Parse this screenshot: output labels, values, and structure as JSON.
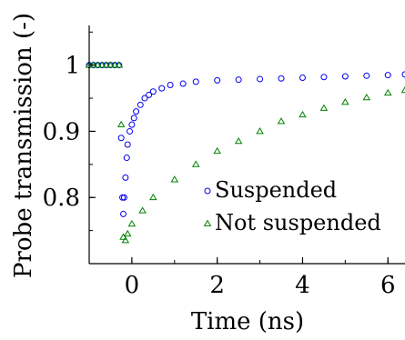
{
  "chart_data": {
    "type": "scatter",
    "title": "",
    "xlabel": "Time (ns)",
    "ylabel": "Probe transmission (-)",
    "xlim": [
      -1.0,
      6.4
    ],
    "ylim": [
      0.7,
      1.06
    ],
    "xticks": [
      0,
      2,
      4,
      6
    ],
    "yticks": [
      0.8,
      0.9,
      1
    ],
    "xtick_labels": [
      "0",
      "2",
      "4",
      "6"
    ],
    "ytick_labels": [
      "0.8",
      "0.9",
      "1"
    ],
    "grid": false,
    "legend_position": "inside-lower-right",
    "series": [
      {
        "name": "Suspended",
        "marker": "circle",
        "color": "#0000ee",
        "x": [
          -1.0,
          -0.9,
          -0.8,
          -0.7,
          -0.6,
          -0.5,
          -0.4,
          -0.3,
          -0.25,
          -0.22,
          -0.2,
          -0.18,
          -0.15,
          -0.12,
          -0.1,
          -0.05,
          0.0,
          0.05,
          0.1,
          0.2,
          0.3,
          0.4,
          0.5,
          0.7,
          0.9,
          1.2,
          1.5,
          2.0,
          2.5,
          3.0,
          3.5,
          4.0,
          4.5,
          5.0,
          5.5,
          6.0,
          6.4
        ],
        "y": [
          1.0,
          1.0,
          1.0,
          1.0,
          1.0,
          1.0,
          1.0,
          1.0,
          0.89,
          0.8,
          0.775,
          0.8,
          0.83,
          0.86,
          0.88,
          0.9,
          0.91,
          0.92,
          0.93,
          0.94,
          0.95,
          0.955,
          0.96,
          0.965,
          0.97,
          0.972,
          0.975,
          0.977,
          0.978,
          0.979,
          0.98,
          0.981,
          0.982,
          0.983,
          0.984,
          0.985,
          0.986
        ]
      },
      {
        "name": "Not suspended",
        "marker": "triangle",
        "color": "#008000",
        "x": [
          -1.0,
          -0.9,
          -0.8,
          -0.7,
          -0.6,
          -0.5,
          -0.4,
          -0.3,
          -0.25,
          -0.2,
          -0.15,
          -0.1,
          0.0,
          0.25,
          0.5,
          1.0,
          1.5,
          2.0,
          2.5,
          3.0,
          3.5,
          4.0,
          4.5,
          5.0,
          5.5,
          6.0,
          6.4
        ],
        "y": [
          1.0,
          1.0,
          1.0,
          1.0,
          1.0,
          1.0,
          1.0,
          1.0,
          0.91,
          0.74,
          0.735,
          0.745,
          0.76,
          0.78,
          0.8,
          0.827,
          0.85,
          0.87,
          0.885,
          0.9,
          0.915,
          0.925,
          0.935,
          0.944,
          0.951,
          0.958,
          0.962
        ]
      }
    ]
  }
}
